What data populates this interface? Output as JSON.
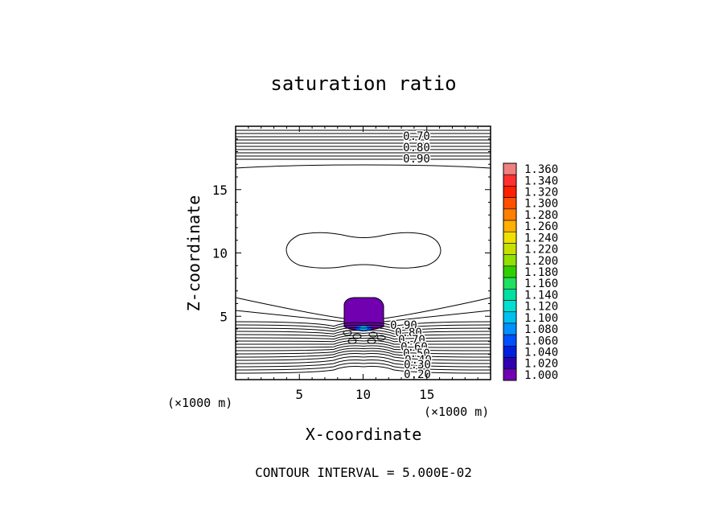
{
  "chart_data": {
    "type": "contour",
    "title": "saturation ratio",
    "xlabel": "X-coordinate",
    "ylabel": "Z-coordinate",
    "x_unit": "(×1000 m)",
    "y_unit": "(×1000 m)",
    "xlim": [
      0,
      20
    ],
    "ylim": [
      0,
      20
    ],
    "x_ticks": [
      "5",
      "10",
      "15"
    ],
    "y_ticks": [
      "5",
      "10",
      "15"
    ],
    "footer": "CONTOUR INTERVAL = 5.000E-02",
    "contour_interval": 0.05,
    "contour_labels_top": [
      "0.70",
      "0.80",
      "0.90"
    ],
    "contour_labels_bottom": [
      "0.90",
      "0.80",
      "0.70",
      "0.60",
      "0.50",
      "0.40",
      "0.30",
      "0.20"
    ],
    "colorbar": {
      "min": 1.0,
      "max": 1.36,
      "labels": [
        "1.360",
        "1.340",
        "1.320",
        "1.300",
        "1.280",
        "1.260",
        "1.240",
        "1.220",
        "1.200",
        "1.180",
        "1.160",
        "1.140",
        "1.120",
        "1.100",
        "1.080",
        "1.060",
        "1.040",
        "1.020",
        "1.000"
      ],
      "colors": [
        "#f08080",
        "#ff3030",
        "#ff2000",
        "#ff5000",
        "#ff8000",
        "#ffb000",
        "#f0e000",
        "#c8e000",
        "#90e000",
        "#30d000",
        "#20e060",
        "#00e0a0",
        "#00e0d0",
        "#00c0f0",
        "#0090ff",
        "#0050ff",
        "#0020e0",
        "#3000b0",
        "#7000b0"
      ]
    }
  }
}
